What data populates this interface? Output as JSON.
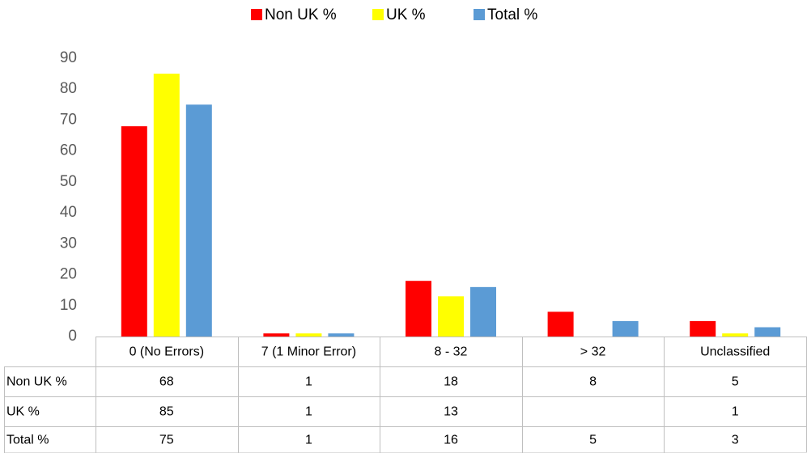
{
  "chart_data": {
    "type": "bar",
    "categories": [
      "0 (No Errors)",
      "7 (1 Minor Error)",
      "8 - 32",
      "> 32",
      "Unclassified"
    ],
    "series": [
      {
        "name": "Non UK %",
        "color": "#ff0000",
        "values": [
          68,
          1,
          18,
          8,
          5
        ]
      },
      {
        "name": "UK %",
        "color": "#ffff00",
        "values": [
          85,
          1,
          13,
          null,
          1
        ]
      },
      {
        "name": "Total %",
        "color": "#5b9bd5",
        "values": [
          75,
          1,
          16,
          5,
          3
        ]
      }
    ],
    "ylim": [
      0,
      90
    ],
    "yticks": [
      0,
      10,
      20,
      30,
      40,
      50,
      60,
      70,
      80,
      90
    ],
    "grid": false,
    "legend": "top",
    "data_table": true
  }
}
